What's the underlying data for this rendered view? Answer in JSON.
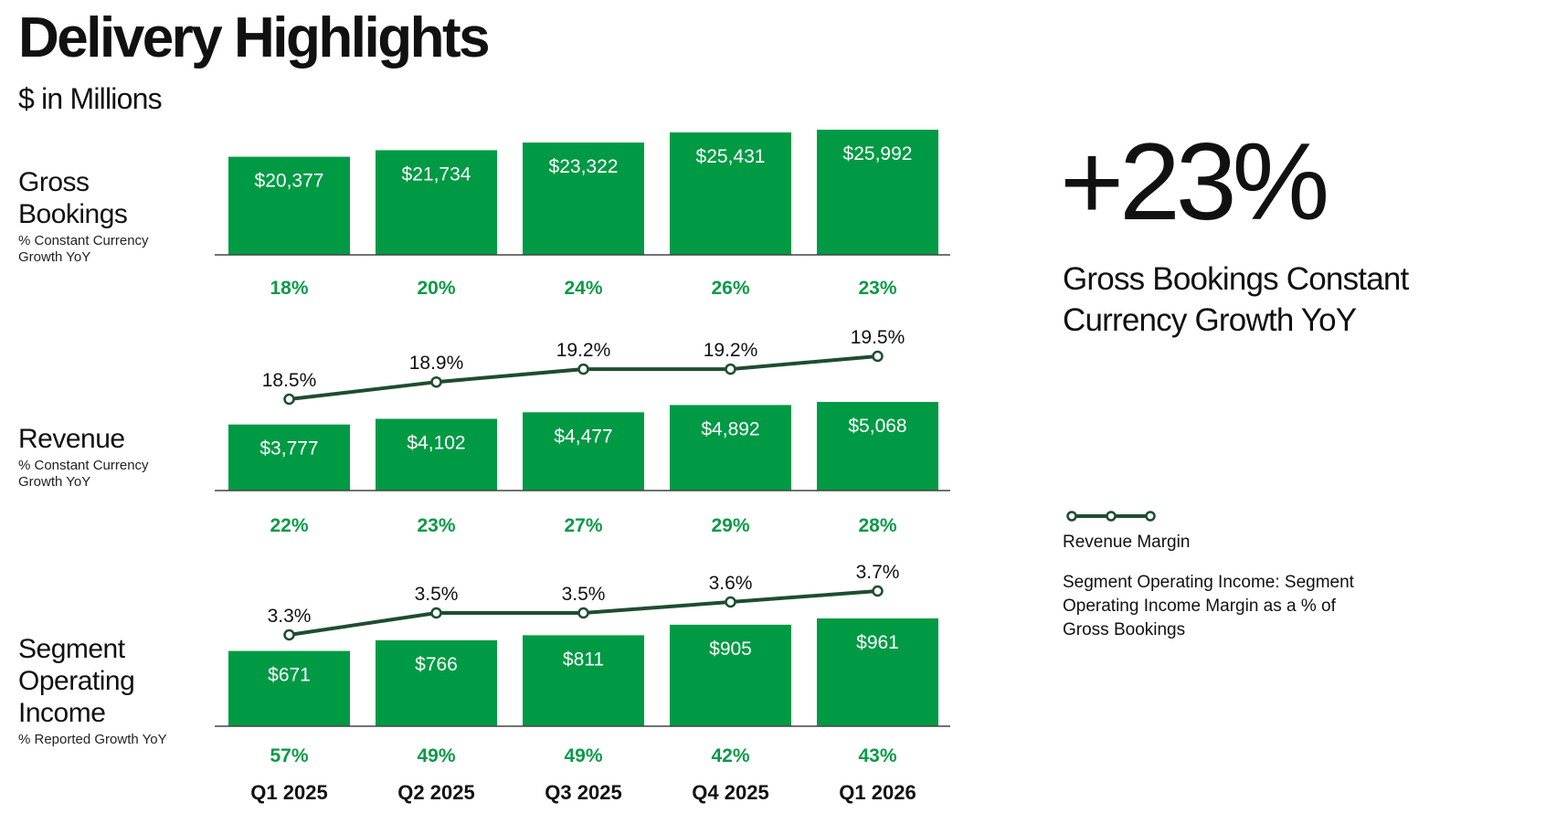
{
  "title": "Delivery Highlights",
  "subtitle": "$ in Millions",
  "rows": [
    {
      "title": "Gross Bookings",
      "sub": "% Constant Currency Growth YoY"
    },
    {
      "title": "Revenue",
      "sub": "% Constant Currency Growth YoY"
    },
    {
      "title": "Segment Operating Income",
      "sub": "% Reported Growth YoY"
    }
  ],
  "highlight": {
    "value": "+23%",
    "caption": "Gross Bookings Constant Currency Growth YoY"
  },
  "legend": {
    "line_label": "Revenue Margin",
    "note": "Segment Operating Income: Segment Operating Income Margin as a % of Gross Bookings"
  },
  "colors": {
    "bar": "#009a44",
    "growth_text": "#0a9a47",
    "line": "#1e4d2f",
    "axis": "#444444"
  },
  "chart_data": [
    {
      "type": "bar",
      "categories": [
        "Q1 2025",
        "Q2 2025",
        "Q3 2025",
        "Q4 2025",
        "Q1 2026"
      ],
      "values": [
        20377,
        21734,
        23322,
        25431,
        25992
      ],
      "value_labels": [
        "$20,377",
        "$21,734",
        "$23,322",
        "$25,431",
        "$25,992"
      ],
      "growth_labels": [
        "18%",
        "20%",
        "24%",
        "26%",
        "23%"
      ],
      "ylim": [
        0,
        25992
      ]
    },
    {
      "type": "bar",
      "categories": [
        "Q1 2025",
        "Q2 2025",
        "Q3 2025",
        "Q4 2025",
        "Q1 2026"
      ],
      "values": [
        3777,
        4102,
        4477,
        4892,
        5068
      ],
      "value_labels": [
        "$3,777",
        "$4,102",
        "$4,477",
        "$4,892",
        "$5,068"
      ],
      "growth_labels": [
        "22%",
        "23%",
        "27%",
        "29%",
        "28%"
      ],
      "ylim": [
        0,
        5068
      ],
      "line": {
        "values": [
          18.5,
          18.9,
          19.2,
          19.2,
          19.5
        ],
        "labels": [
          "18.5%",
          "18.9%",
          "19.2%",
          "19.2%",
          "19.5%"
        ]
      }
    },
    {
      "type": "bar",
      "categories": [
        "Q1 2025",
        "Q2 2025",
        "Q3 2025",
        "Q4 2025",
        "Q1 2026"
      ],
      "values": [
        671,
        766,
        811,
        905,
        961
      ],
      "value_labels": [
        "$671",
        "$766",
        "$811",
        "$905",
        "$961"
      ],
      "growth_labels": [
        "57%",
        "49%",
        "49%",
        "42%",
        "43%"
      ],
      "ylim": [
        0,
        961
      ],
      "line": {
        "values": [
          3.3,
          3.5,
          3.5,
          3.6,
          3.7
        ],
        "labels": [
          "3.3%",
          "3.5%",
          "3.5%",
          "3.6%",
          "3.7%"
        ]
      }
    }
  ]
}
